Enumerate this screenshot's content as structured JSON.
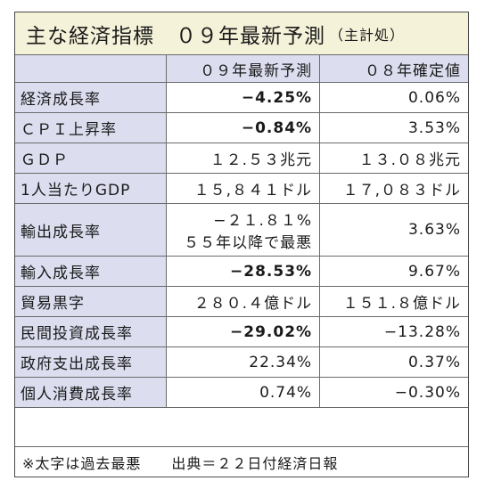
{
  "title": {
    "main": "主な経済指標　０９年最新予測",
    "note": "（主計処）"
  },
  "header": {
    "col1": "",
    "col2": "０９年最新予測",
    "col3": "０８年確定値"
  },
  "rows": [
    {
      "label": "経済成長率",
      "forecast": "−4.25%",
      "forecast_bold": true,
      "actual": "0.06%"
    },
    {
      "label": "ＣＰＩ上昇率",
      "forecast": "−0.84%",
      "forecast_bold": true,
      "actual": "3.53%"
    },
    {
      "label": "ＧＤＰ",
      "forecast": "１２.５３兆元",
      "forecast_bold": false,
      "actual": "１３.０８兆元"
    },
    {
      "label": "1人当たりGDP",
      "forecast": "１５,８４１ドル",
      "forecast_bold": false,
      "actual": "１７,０８３ドル"
    },
    {
      "label": "輸出成長率",
      "forecast": "−２１.８１%",
      "forecast_note": "５５年以降で最悪",
      "forecast_bold": false,
      "actual": "3.63%"
    },
    {
      "label": "輸入成長率",
      "forecast": "−28.53%",
      "forecast_bold": true,
      "actual": "9.67%"
    },
    {
      "label": "貿易黒字",
      "forecast": "２８０.４億ドル",
      "forecast_bold": false,
      "actual": "１５１.８億ドル"
    },
    {
      "label": "民間投資成長率",
      "forecast": "−29.02%",
      "forecast_bold": true,
      "actual": "−13.28%"
    },
    {
      "label": "政府支出成長率",
      "forecast": "22.34%",
      "forecast_bold": false,
      "actual": "0.37%"
    },
    {
      "label": "個人消費成長率",
      "forecast": "0.74%",
      "forecast_bold": false,
      "actual": "−0.30%"
    }
  ],
  "footnote": {
    "note": "※太字は過去最悪",
    "source": "出典＝２２日付経済日報"
  }
}
